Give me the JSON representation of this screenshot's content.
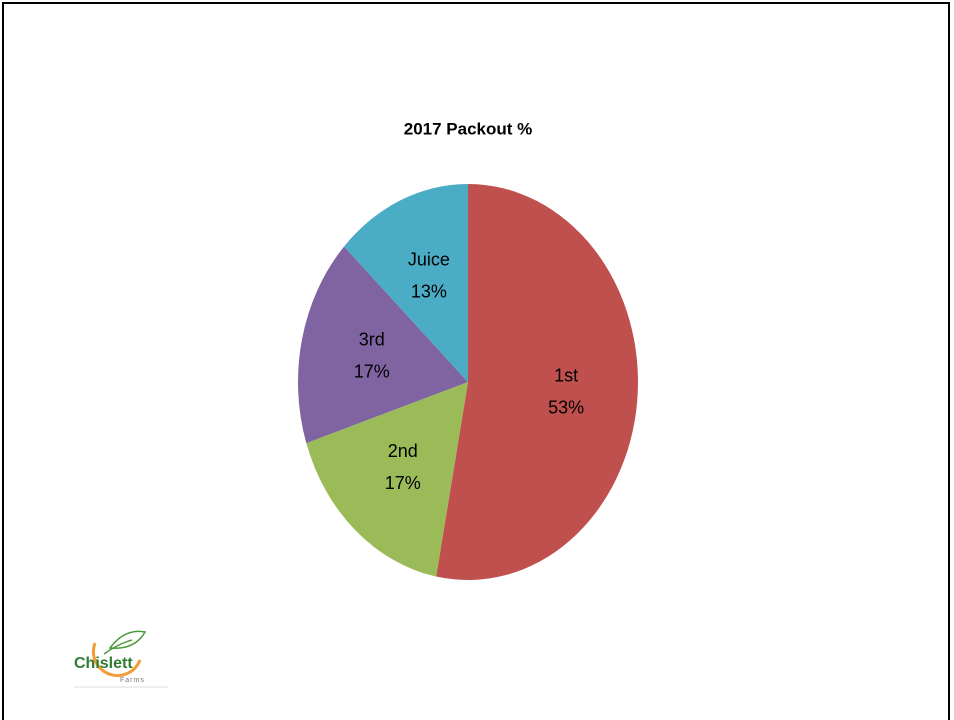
{
  "chart_data": {
    "type": "pie",
    "title": "2017 Packout %",
    "categories": [
      "1st",
      "2nd",
      "3rd",
      "Juice"
    ],
    "values": [
      53,
      17,
      17,
      13
    ],
    "value_labels": [
      "53%",
      "17%",
      "17%",
      "13%"
    ],
    "colors": [
      "#c0504d",
      "#9bbb59",
      "#8064a2",
      "#4bacc6"
    ]
  },
  "logo": {
    "name": "Chislett",
    "sub": "Farms"
  }
}
